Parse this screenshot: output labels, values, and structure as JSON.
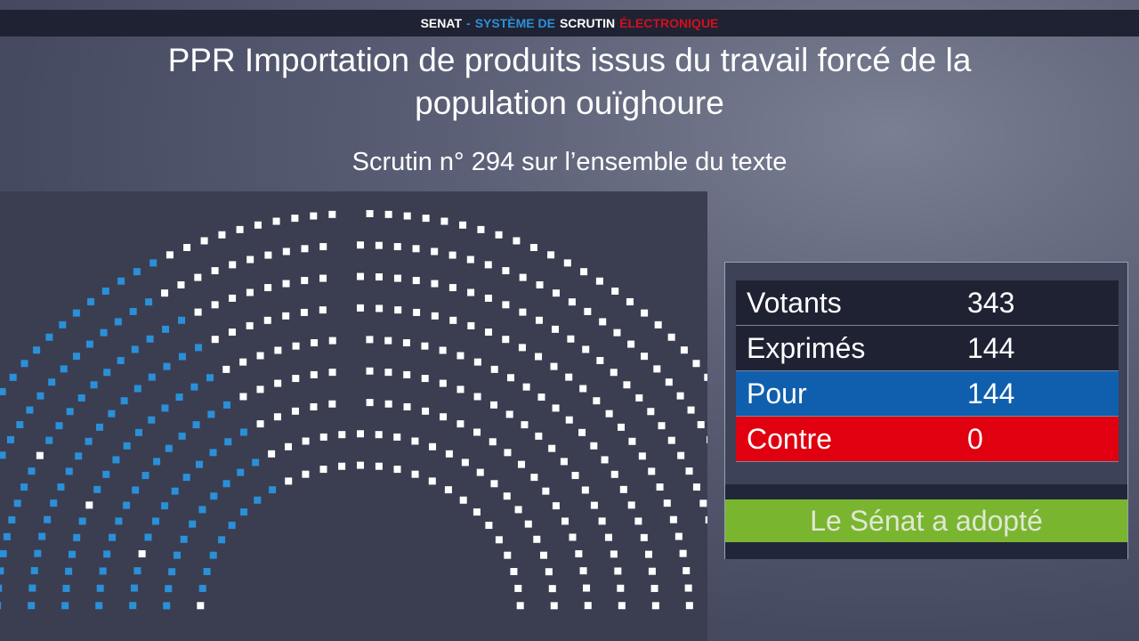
{
  "header": {
    "part1": "SENAT",
    "sep": "-",
    "part2": "SYSTÈME DE",
    "part3": "SCRUTIN",
    "part4": "ÉLECTRONIQUE"
  },
  "title_line1": "PPR Importation de produits issus du travail forcé de la",
  "title_line2": "population ouïghoure",
  "subtitle": "Scrutin n° 294 sur l’ensemble du texte",
  "results": [
    {
      "label": "Votants",
      "value": "343",
      "color": "#1f2233"
    },
    {
      "label": "Exprimés",
      "value": "144",
      "color": "#1f2233"
    },
    {
      "label": "Pour",
      "value": "144",
      "color": "#0f5fae"
    },
    {
      "label": "Contre",
      "value": "0",
      "color": "#e0000f"
    }
  ],
  "outcome": "Le Sénat a adopté",
  "hemicycle": {
    "seat_colors": {
      "pour": "#2a90d8",
      "other": "#ffffff"
    }
  }
}
